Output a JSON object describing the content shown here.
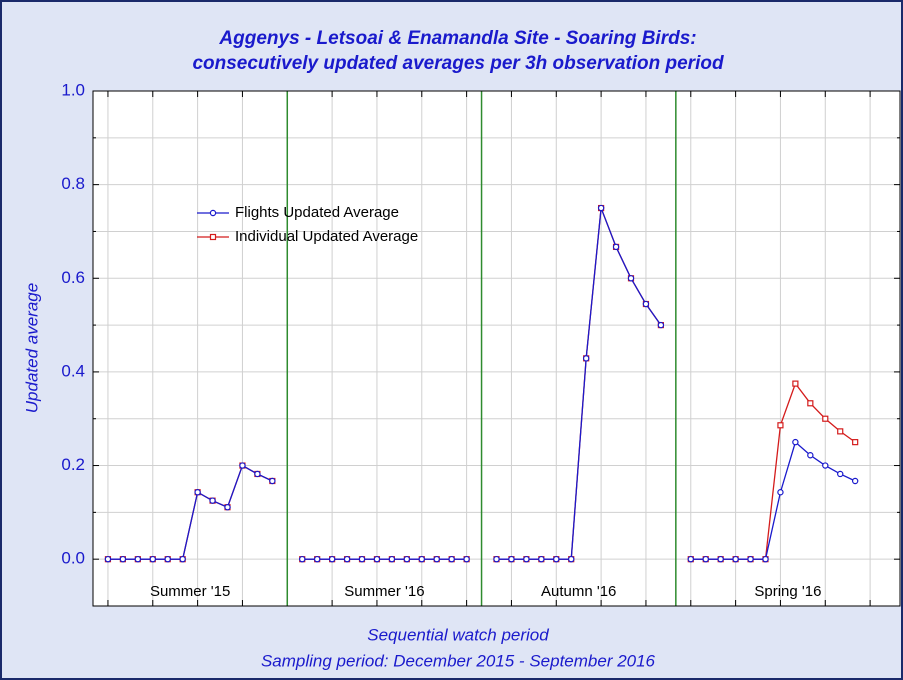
{
  "chart_data": {
    "type": "line",
    "title": "Aggenys - Letsoai & Enamandla Site - Soaring Birds:",
    "subtitle": "consecutively updated  averages per 3h observation period",
    "ylabel": "Updated average",
    "xlabel": "Sequential watch period",
    "caption": "Sampling period: December 2015 - September 2016",
    "x": [
      1,
      2,
      3,
      4,
      5,
      6,
      7,
      8,
      9,
      10,
      11,
      12,
      13,
      14,
      15,
      16,
      17,
      18,
      19,
      20,
      21,
      22,
      23,
      24,
      25,
      26,
      27,
      28,
      29,
      30,
      31,
      32,
      33,
      34,
      35,
      36,
      37,
      38,
      39,
      40,
      41,
      42,
      43,
      44,
      45,
      46,
      47,
      48,
      49,
      50,
      51
    ],
    "series": [
      {
        "name": "Flights Updated Average",
        "color": "#1a1acc",
        "marker": "circle",
        "values": [
          0,
          0,
          0,
          0,
          0,
          0,
          0.143,
          0.125,
          0.111,
          0.2,
          0.182,
          0.167,
          null,
          0,
          0,
          0,
          0,
          0,
          0,
          0,
          0,
          0,
          0,
          0,
          0,
          null,
          0,
          0,
          0,
          0,
          0,
          0,
          0.429,
          0.75,
          0.667,
          0.6,
          0.545,
          0.5,
          null,
          0,
          0,
          0,
          0,
          0,
          0,
          0.143,
          0.25,
          0.222,
          0.2,
          0.182,
          0.167
        ]
      },
      {
        "name": "Individual Updated Average",
        "color": "#d41c1c",
        "marker": "square",
        "values": [
          0,
          0,
          0,
          0,
          0,
          0,
          0.143,
          0.125,
          0.111,
          0.2,
          0.182,
          0.167,
          null,
          0,
          0,
          0,
          0,
          0,
          0,
          0,
          0,
          0,
          0,
          0,
          0,
          null,
          0,
          0,
          0,
          0,
          0,
          0,
          0.429,
          0.75,
          0.667,
          0.6,
          0.545,
          0.5,
          null,
          0,
          0,
          0,
          0,
          0,
          0,
          0.286,
          0.375,
          0.333,
          0.3,
          0.273,
          0.25
        ]
      }
    ],
    "sections": [
      "Summer '15",
      "Summer '16",
      "Autumn '16",
      "Spring '16"
    ],
    "separators": [
      13,
      26,
      39
    ],
    "separator_color": "#2e8b2e",
    "xlim": [
      0,
      54
    ],
    "xticks": [
      1,
      4,
      7,
      10,
      13,
      16,
      19,
      22,
      25,
      28,
      31,
      34,
      37,
      40,
      43,
      46,
      49,
      52
    ],
    "ylim": [
      -0.1,
      1.0
    ],
    "yticks": [
      {
        "value": 0,
        "label": "0.0"
      },
      0.2,
      0.4,
      0.6,
      0.8,
      {
        "value": 1,
        "label": "1.0"
      }
    ],
    "y_minor_ticks": [
      0.1,
      0.3,
      0.5,
      0.7,
      0.9
    ],
    "grid": true,
    "legend": "upper left"
  }
}
